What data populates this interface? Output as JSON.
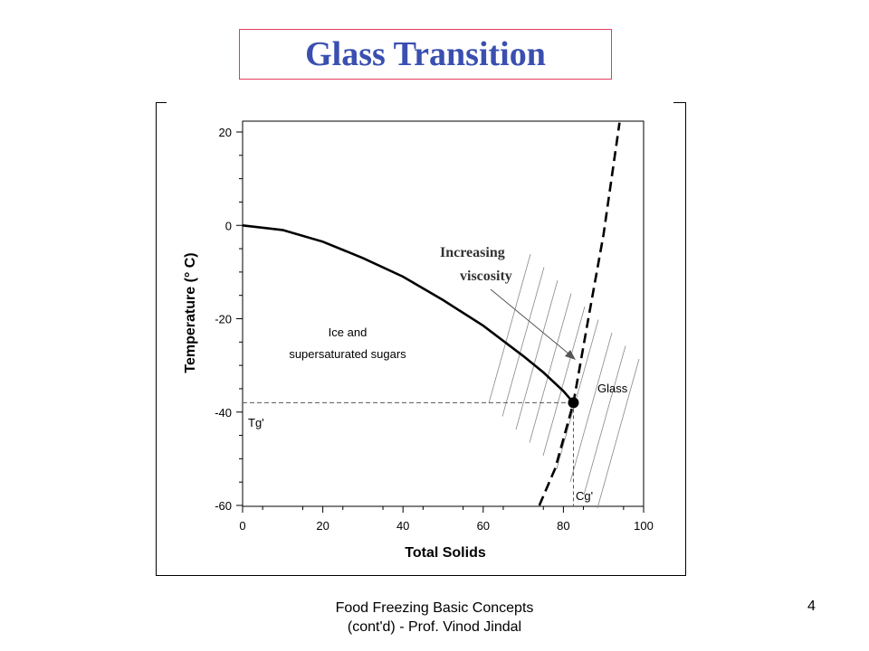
{
  "slide": {
    "title": "Glass Transition",
    "footer_line1": "Food Freezing Basic Concepts",
    "footer_line2": "(cont'd) - Prof. Vinod Jindal",
    "page_number": "4"
  },
  "chart_data": {
    "type": "line",
    "xlabel": "Total Solids",
    "ylabel": "Temperature (° C)",
    "xlim": [
      0,
      100
    ],
    "ylim": [
      -60,
      20
    ],
    "x_ticks": [
      0,
      20,
      40,
      60,
      80,
      100
    ],
    "y_ticks": [
      20,
      0,
      -20,
      -40,
      -60
    ],
    "series": [
      {
        "style": "solid",
        "x": [
          0,
          10,
          20,
          30,
          40,
          50,
          60,
          70,
          75,
          80,
          82.5
        ],
        "y": [
          0,
          -1,
          -3.5,
          -7,
          -11,
          -16,
          -21.5,
          -28,
          -31.5,
          -35.5,
          -38
        ]
      },
      {
        "style": "dashed",
        "x": [
          74,
          78,
          82.5,
          86,
          90,
          94
        ],
        "y": [
          -60,
          -52,
          -38,
          -21,
          -2,
          22
        ]
      }
    ],
    "point": {
      "x": 82.5,
      "y": -38,
      "label": "Glass"
    },
    "reference_lines": {
      "tg_label": "Tg'",
      "cg_label": "Cg'"
    },
    "region_label_1": "Ice and",
    "region_label_2": "supersaturated sugars",
    "annotation_1": "Increasing",
    "annotation_2": "viscosity"
  }
}
